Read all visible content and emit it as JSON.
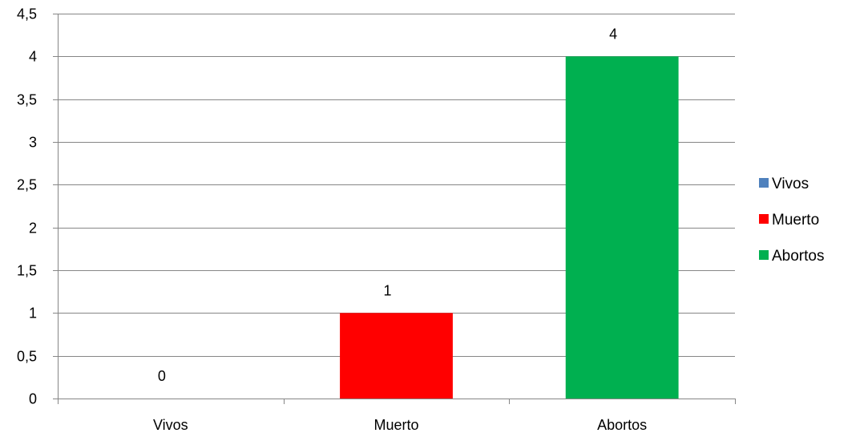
{
  "chart_data": {
    "type": "bar",
    "categories": [
      "Vivos",
      "Muerto",
      "Abortos"
    ],
    "values": [
      0,
      1,
      4
    ],
    "data_labels": [
      "0",
      "1",
      "4"
    ],
    "colors": [
      "#4F81BD",
      "#FF0000",
      "#00B050"
    ],
    "ylim": [
      0,
      4.5
    ],
    "y_ticks": [
      "0",
      "0,5",
      "1",
      "1,5",
      "2",
      "2,5",
      "3",
      "3,5",
      "4",
      "4,5"
    ],
    "y_tick_values": [
      0,
      0.5,
      1,
      1.5,
      2,
      2.5,
      3,
      3.5,
      4,
      4.5
    ],
    "grid": true,
    "legend": {
      "position": "right",
      "entries": [
        "Vivos",
        "Muerto",
        "Abortos"
      ]
    },
    "title": "",
    "xlabel": "",
    "ylabel": ""
  }
}
